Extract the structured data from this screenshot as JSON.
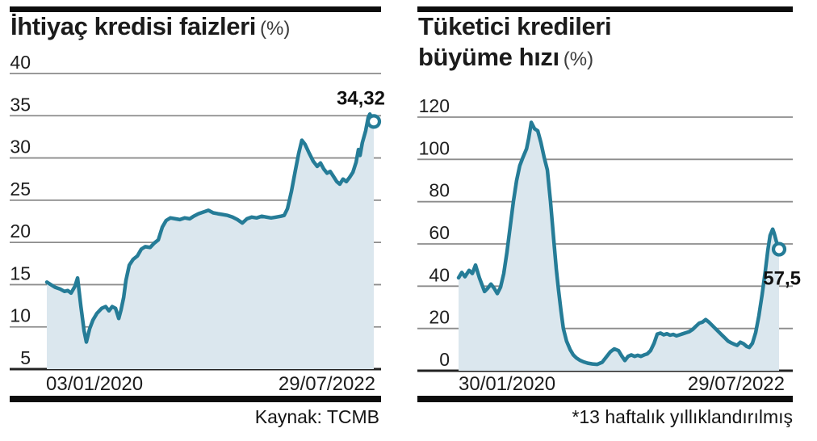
{
  "theme": {
    "line_color": "#257c97",
    "fill_color": "#dbe7ee",
    "grid_color": "#8c8c8c",
    "axis_color": "#222222",
    "rule_color": "#0d0d0d",
    "marker_fill": "#ffffff"
  },
  "chart_data": [
    {
      "type": "area",
      "title_lines": [
        "İhtiyaç kredisi faizleri"
      ],
      "unit_suffix": "(%)",
      "ylim": [
        5,
        40
      ],
      "yticks": [
        40,
        35,
        30,
        25,
        20,
        15,
        10,
        5
      ],
      "grid": "on",
      "legend": "none",
      "x_axis_labels": [
        "03/01/2020",
        "29/07/2022"
      ],
      "end_label": "34,32",
      "end_value": 34.32,
      "footer": "Kaynak: TCMB",
      "points": [
        [
          0.0,
          15.3
        ],
        [
          0.012,
          15.0
        ],
        [
          0.025,
          14.7
        ],
        [
          0.04,
          14.5
        ],
        [
          0.054,
          14.2
        ],
        [
          0.064,
          14.3
        ],
        [
          0.074,
          14.0
        ],
        [
          0.086,
          14.8
        ],
        [
          0.094,
          15.8
        ],
        [
          0.104,
          12.5
        ],
        [
          0.114,
          9.5
        ],
        [
          0.121,
          8.2
        ],
        [
          0.131,
          9.8
        ],
        [
          0.141,
          10.8
        ],
        [
          0.153,
          11.6
        ],
        [
          0.168,
          12.2
        ],
        [
          0.18,
          12.4
        ],
        [
          0.19,
          11.9
        ],
        [
          0.2,
          12.4
        ],
        [
          0.21,
          12.2
        ],
        [
          0.22,
          11.0
        ],
        [
          0.227,
          12.0
        ],
        [
          0.235,
          13.5
        ],
        [
          0.242,
          15.5
        ],
        [
          0.252,
          17.3
        ],
        [
          0.264,
          18.0
        ],
        [
          0.277,
          18.4
        ],
        [
          0.289,
          19.2
        ],
        [
          0.301,
          19.5
        ],
        [
          0.316,
          19.4
        ],
        [
          0.328,
          19.9
        ],
        [
          0.341,
          20.3
        ],
        [
          0.353,
          21.8
        ],
        [
          0.365,
          22.6
        ],
        [
          0.378,
          22.9
        ],
        [
          0.393,
          22.8
        ],
        [
          0.407,
          22.7
        ],
        [
          0.422,
          22.9
        ],
        [
          0.437,
          22.8
        ],
        [
          0.449,
          23.1
        ],
        [
          0.464,
          23.4
        ],
        [
          0.479,
          23.6
        ],
        [
          0.494,
          23.8
        ],
        [
          0.509,
          23.5
        ],
        [
          0.523,
          23.4
        ],
        [
          0.538,
          23.3
        ],
        [
          0.553,
          23.2
        ],
        [
          0.568,
          23.0
        ],
        [
          0.583,
          22.7
        ],
        [
          0.598,
          22.3
        ],
        [
          0.612,
          22.8
        ],
        [
          0.627,
          23.0
        ],
        [
          0.642,
          22.9
        ],
        [
          0.657,
          23.1
        ],
        [
          0.672,
          23.0
        ],
        [
          0.686,
          22.9
        ],
        [
          0.701,
          23.0
        ],
        [
          0.716,
          23.1
        ],
        [
          0.726,
          23.2
        ],
        [
          0.736,
          24.0
        ],
        [
          0.748,
          26.0
        ],
        [
          0.76,
          28.5
        ],
        [
          0.77,
          30.5
        ],
        [
          0.78,
          32.1
        ],
        [
          0.79,
          31.6
        ],
        [
          0.802,
          30.6
        ],
        [
          0.815,
          29.6
        ],
        [
          0.827,
          29.0
        ],
        [
          0.837,
          29.4
        ],
        [
          0.847,
          28.7
        ],
        [
          0.857,
          28.2
        ],
        [
          0.867,
          28.4
        ],
        [
          0.877,
          27.8
        ],
        [
          0.887,
          27.2
        ],
        [
          0.896,
          26.9
        ],
        [
          0.906,
          27.5
        ],
        [
          0.916,
          27.2
        ],
        [
          0.926,
          27.7
        ],
        [
          0.936,
          28.3
        ],
        [
          0.946,
          29.5
        ],
        [
          0.953,
          31.0
        ],
        [
          0.958,
          30.3
        ],
        [
          0.965,
          31.8
        ],
        [
          0.975,
          33.2
        ],
        [
          0.983,
          34.8
        ],
        [
          0.988,
          35.2
        ],
        [
          0.995,
          34.7
        ],
        [
          1.0,
          34.32
        ]
      ]
    },
    {
      "type": "area",
      "title_lines": [
        "Tüketici kredileri",
        "büyüme hızı"
      ],
      "unit_suffix": "(%)",
      "ylim": [
        0,
        120
      ],
      "yticks": [
        120,
        100,
        80,
        60,
        40,
        20,
        0
      ],
      "grid": "on",
      "legend": "none",
      "x_axis_labels": [
        "30/01/2020",
        "29/07/2022"
      ],
      "end_label": "57,5",
      "end_value": 57.5,
      "footer": "*13 haftalık yıllıklandırılmış",
      "points": [
        [
          0.0,
          44.0
        ],
        [
          0.01,
          46.5
        ],
        [
          0.02,
          44.5
        ],
        [
          0.033,
          47.5
        ],
        [
          0.043,
          46.0
        ],
        [
          0.053,
          50.0
        ],
        [
          0.065,
          44.0
        ],
        [
          0.081,
          37.5
        ],
        [
          0.091,
          39.0
        ],
        [
          0.101,
          41.0
        ],
        [
          0.111,
          39.0
        ],
        [
          0.121,
          36.5
        ],
        [
          0.131,
          39.5
        ],
        [
          0.141,
          46.0
        ],
        [
          0.151,
          56.0
        ],
        [
          0.161,
          68.0
        ],
        [
          0.171,
          80.0
        ],
        [
          0.181,
          90.0
        ],
        [
          0.191,
          97.0
        ],
        [
          0.201,
          101.0
        ],
        [
          0.212,
          105.0
        ],
        [
          0.219,
          110.0
        ],
        [
          0.227,
          117.5
        ],
        [
          0.237,
          114.5
        ],
        [
          0.247,
          113.5
        ],
        [
          0.257,
          108.0
        ],
        [
          0.267,
          101.0
        ],
        [
          0.277,
          95.0
        ],
        [
          0.287,
          80.0
        ],
        [
          0.297,
          62.0
        ],
        [
          0.305,
          48.0
        ],
        [
          0.312,
          38.0
        ],
        [
          0.32,
          28.0
        ],
        [
          0.327,
          20.0
        ],
        [
          0.337,
          14.0
        ],
        [
          0.348,
          10.0
        ],
        [
          0.358,
          7.5
        ],
        [
          0.368,
          6.0
        ],
        [
          0.378,
          5.0
        ],
        [
          0.39,
          4.2
        ],
        [
          0.403,
          3.6
        ],
        [
          0.418,
          3.2
        ],
        [
          0.433,
          3.0
        ],
        [
          0.448,
          4.0
        ],
        [
          0.461,
          6.5
        ],
        [
          0.474,
          9.0
        ],
        [
          0.486,
          10.3
        ],
        [
          0.499,
          9.5
        ],
        [
          0.509,
          7.0
        ],
        [
          0.519,
          4.8
        ],
        [
          0.529,
          6.8
        ],
        [
          0.539,
          7.5
        ],
        [
          0.549,
          6.8
        ],
        [
          0.559,
          7.3
        ],
        [
          0.569,
          6.8
        ],
        [
          0.579,
          7.5
        ],
        [
          0.589,
          8.0
        ],
        [
          0.599,
          9.5
        ],
        [
          0.61,
          13.0
        ],
        [
          0.62,
          17.3
        ],
        [
          0.63,
          17.8
        ],
        [
          0.64,
          17.0
        ],
        [
          0.65,
          17.5
        ],
        [
          0.66,
          16.8
        ],
        [
          0.67,
          17.2
        ],
        [
          0.68,
          16.5
        ],
        [
          0.69,
          17.0
        ],
        [
          0.7,
          17.5
        ],
        [
          0.71,
          18.0
        ],
        [
          0.72,
          18.5
        ],
        [
          0.73,
          19.5
        ],
        [
          0.74,
          21.0
        ],
        [
          0.751,
          22.5
        ],
        [
          0.761,
          23.0
        ],
        [
          0.771,
          24.2
        ],
        [
          0.781,
          23.0
        ],
        [
          0.791,
          21.5
        ],
        [
          0.801,
          20.0
        ],
        [
          0.811,
          18.5
        ],
        [
          0.821,
          17.0
        ],
        [
          0.831,
          15.5
        ],
        [
          0.841,
          14.0
        ],
        [
          0.851,
          13.2
        ],
        [
          0.861,
          12.5
        ],
        [
          0.869,
          12.0
        ],
        [
          0.879,
          13.5
        ],
        [
          0.889,
          12.8
        ],
        [
          0.899,
          11.5
        ],
        [
          0.907,
          11.0
        ],
        [
          0.917,
          13.0
        ],
        [
          0.927,
          18.0
        ],
        [
          0.937,
          26.0
        ],
        [
          0.947,
          36.0
        ],
        [
          0.957,
          47.0
        ],
        [
          0.965,
          57.0
        ],
        [
          0.972,
          64.0
        ],
        [
          0.98,
          67.0
        ],
        [
          0.985,
          65.0
        ],
        [
          0.992,
          61.0
        ],
        [
          1.0,
          57.5
        ]
      ]
    }
  ]
}
